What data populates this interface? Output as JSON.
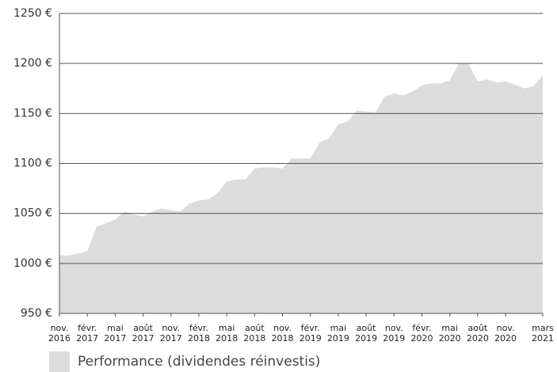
{
  "chart_data": {
    "type": "area",
    "x": [
      "2016-11",
      "2016-12",
      "2017-01",
      "2017-02",
      "2017-03",
      "2017-04",
      "2017-05",
      "2017-06",
      "2017-07",
      "2017-08",
      "2017-09",
      "2017-10",
      "2017-11",
      "2017-12",
      "2018-01",
      "2018-02",
      "2018-03",
      "2018-04",
      "2018-05",
      "2018-06",
      "2018-07",
      "2018-08",
      "2018-09",
      "2018-10",
      "2018-11",
      "2018-12",
      "2019-01",
      "2019-02",
      "2019-03",
      "2019-04",
      "2019-05",
      "2019-06",
      "2019-07",
      "2019-08",
      "2019-09",
      "2019-10",
      "2019-11",
      "2019-12",
      "2020-01",
      "2020-02",
      "2020-03",
      "2020-04",
      "2020-05",
      "2020-06",
      "2020-07",
      "2020-08",
      "2020-09",
      "2020-10",
      "2020-11",
      "2020-12",
      "2021-01",
      "2021-02",
      "2021-03"
    ],
    "series": [
      {
        "name": "Performance (dividendes réinvestis)",
        "color": "#dcdcdc",
        "values": [
          1008,
          1008,
          1010,
          1012,
          1037,
          1040,
          1044,
          1052,
          1049,
          1047,
          1052,
          1055,
          1053,
          1052,
          1060,
          1063,
          1064,
          1070,
          1082,
          1084,
          1084,
          1095,
          1096,
          1096,
          1095,
          1105,
          1105,
          1105,
          1121,
          1125,
          1139,
          1142,
          1153,
          1152,
          1151,
          1167,
          1170,
          1168,
          1172,
          1178,
          1180,
          1180,
          1183,
          1200,
          1200,
          1182,
          1184,
          1181,
          1182,
          1179,
          1175,
          1177,
          1188
        ]
      }
    ],
    "xlim": [
      "2016-11",
      "2021-03"
    ],
    "xticks": [
      {
        "value": "2016-11",
        "label": "nov. 2016"
      },
      {
        "value": "2017-02",
        "label": "févr. 2017"
      },
      {
        "value": "2017-05",
        "label": "mai 2017"
      },
      {
        "value": "2017-08",
        "label": "août 2017"
      },
      {
        "value": "2017-11",
        "label": "nov. 2017"
      },
      {
        "value": "2018-02",
        "label": "févr. 2018"
      },
      {
        "value": "2018-05",
        "label": "mai 2018"
      },
      {
        "value": "2018-08",
        "label": "août 2018"
      },
      {
        "value": "2018-11",
        "label": "nov. 2018"
      },
      {
        "value": "2019-02",
        "label": "févr. 2019"
      },
      {
        "value": "2019-05",
        "label": "mai 2019"
      },
      {
        "value": "2019-08",
        "label": "août 2019"
      },
      {
        "value": "2019-11",
        "label": "nov. 2019"
      },
      {
        "value": "2020-02",
        "label": "févr. 2020"
      },
      {
        "value": "2020-05",
        "label": "mai 2020"
      },
      {
        "value": "2020-08",
        "label": "août 2020"
      },
      {
        "value": "2020-11",
        "label": "nov. 2020"
      },
      {
        "value": "2021-03",
        "label": "mars 2021"
      }
    ],
    "ylim": [
      950,
      1250
    ],
    "yticks": [
      {
        "value": 950,
        "label": "950 €"
      },
      {
        "value": 1000,
        "label": "1000 €"
      },
      {
        "value": 1050,
        "label": "1050 €"
      },
      {
        "value": 1100,
        "label": "1100 €"
      },
      {
        "value": 1150,
        "label": "1150 €"
      },
      {
        "value": 1200,
        "label": "1200 €"
      },
      {
        "value": 1250,
        "label": "1250 €"
      }
    ],
    "grid": true
  }
}
